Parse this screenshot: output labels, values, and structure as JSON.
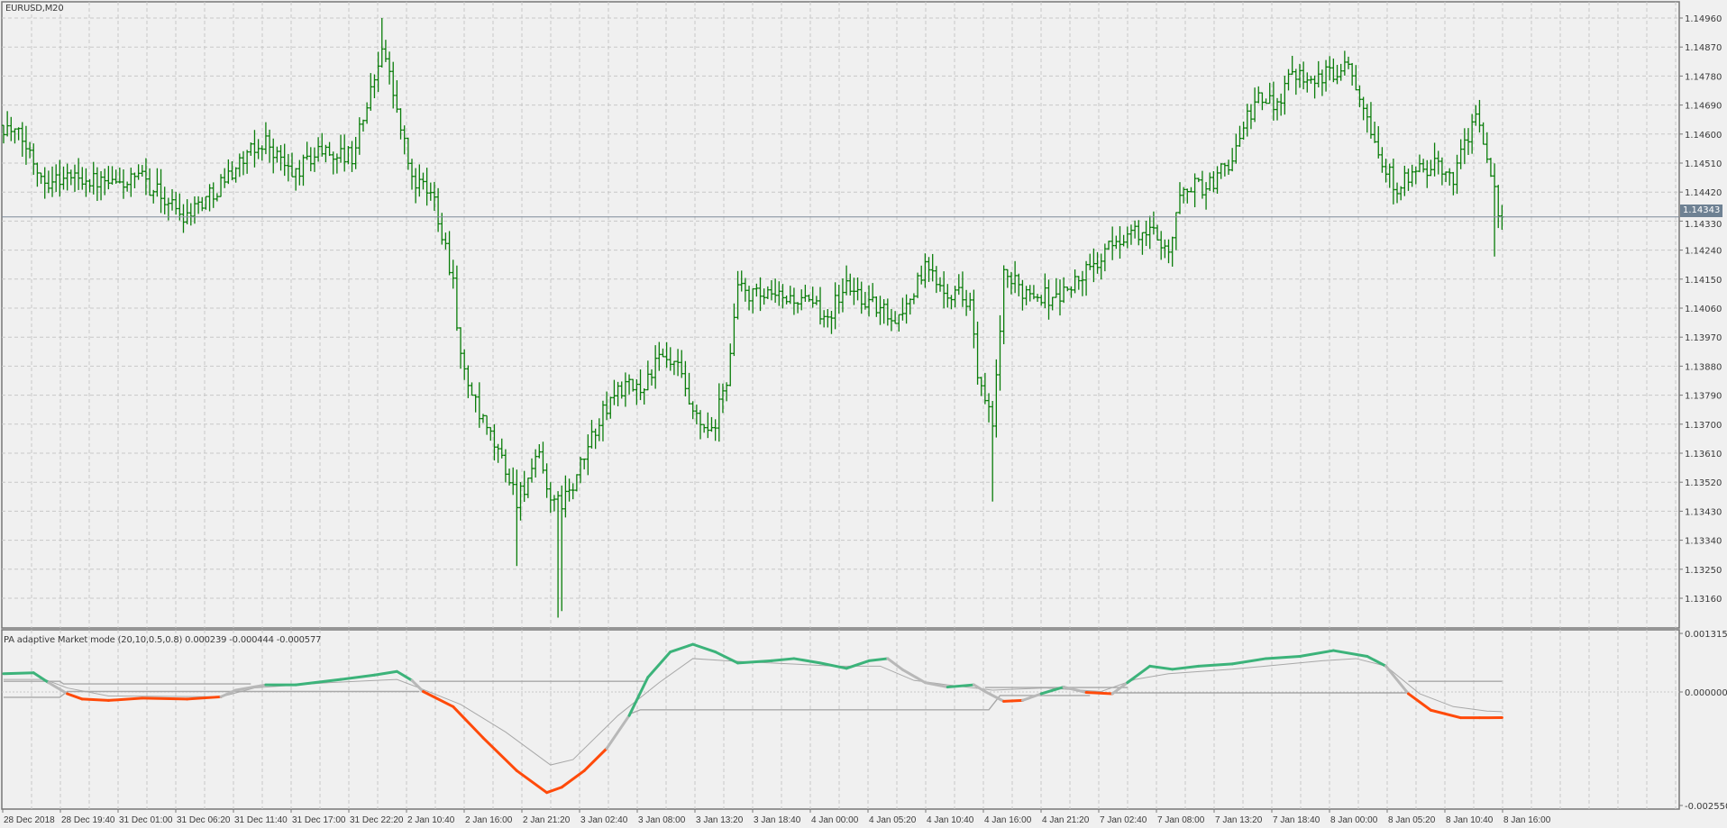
{
  "window": {
    "symbol_label": "EURUSD,M20"
  },
  "indicator": {
    "label": "PA adaptive Market mode (20,10,0.5,0.8) 0.000239 -0.000444 -0.000577",
    "scale_labels": [
      "0.001315",
      "0.000000",
      "-0.002550"
    ]
  },
  "colors": {
    "background": "#f0f0f0",
    "grid": "#c8c8c8",
    "border": "#777777",
    "bars": "#0a7d0a",
    "up": "#3cb37a",
    "down": "#ff4a0a",
    "neutral": "#b8b8b8",
    "signal": "#a8a8a8",
    "current_price_bg": "#6e8193"
  },
  "current_price": "1.14343",
  "chart_data": [
    {
      "type": "ohlc-bar",
      "title": "EURUSD,M20",
      "ylim": [
        1.131,
        1.15
      ],
      "y_ticks": [
        "1.14960",
        "1.14870",
        "1.14780",
        "1.14690",
        "1.14600",
        "1.14510",
        "1.14420",
        "1.14330",
        "1.14240",
        "1.14150",
        "1.14060",
        "1.13970",
        "1.13880",
        "1.13790",
        "1.13700",
        "1.13610",
        "1.13520",
        "1.13430",
        "1.13340",
        "1.13250",
        "1.13160"
      ],
      "x_ticks": [
        "28 Dec 2018",
        "28 Dec 19:40",
        "31 Dec 01:00",
        "31 Dec 06:20",
        "31 Dec 11:40",
        "31 Dec 17:00",
        "31 Dec 22:20",
        "2 Jan 10:40",
        "2 Jan 16:00",
        "2 Jan 21:20",
        "3 Jan 02:40",
        "3 Jan 08:00",
        "3 Jan 13:20",
        "3 Jan 18:40",
        "4 Jan 00:00",
        "4 Jan 05:20",
        "4 Jan 10:40",
        "4 Jan 16:00",
        "4 Jan 21:20",
        "7 Jan 02:40",
        "7 Jan 08:00",
        "7 Jan 13:20",
        "7 Jan 18:40",
        "8 Jan 00:00",
        "8 Jan 05:20",
        "8 Jan 10:40",
        "8 Jan 16:00"
      ],
      "grid": true,
      "close_path": [
        [
          0,
          1.14627
        ],
        [
          5,
          1.1458
        ],
        [
          11,
          1.1446
        ],
        [
          20,
          1.1447
        ],
        [
          28,
          1.1444
        ],
        [
          37,
          1.1446
        ],
        [
          48,
          1.1435
        ],
        [
          55,
          1.1441
        ],
        [
          62,
          1.145
        ],
        [
          70,
          1.1458
        ],
        [
          77,
          1.1447
        ],
        [
          84,
          1.1455
        ],
        [
          93,
          1.1453
        ],
        [
          99,
          1.1477
        ],
        [
          101,
          1.1489
        ],
        [
          105,
          1.1467
        ],
        [
          109,
          1.1446
        ],
        [
          115,
          1.144
        ],
        [
          120,
          1.1415
        ],
        [
          122,
          1.139
        ],
        [
          127,
          1.1372
        ],
        [
          133,
          1.1359
        ],
        [
          137,
          1.1347
        ],
        [
          143,
          1.1359
        ],
        [
          147,
          1.1344
        ],
        [
          152,
          1.135
        ],
        [
          158,
          1.1369
        ],
        [
          164,
          1.1381
        ],
        [
          170,
          1.1381
        ],
        [
          175,
          1.139
        ],
        [
          180,
          1.1387
        ],
        [
          184,
          1.1372
        ],
        [
          189,
          1.1366
        ],
        [
          193,
          1.1384
        ],
        [
          196,
          1.1412
        ],
        [
          202,
          1.1409
        ],
        [
          211,
          1.1409
        ],
        [
          220,
          1.1404
        ],
        [
          225,
          1.1413
        ],
        [
          233,
          1.1406
        ],
        [
          239,
          1.1403
        ],
        [
          246,
          1.1418
        ],
        [
          252,
          1.1412
        ],
        [
          258,
          1.1409
        ],
        [
          260,
          1.1384
        ],
        [
          264,
          1.1369
        ],
        [
          267,
          1.1415
        ],
        [
          272,
          1.1412
        ],
        [
          281,
          1.1409
        ],
        [
          290,
          1.1418
        ],
        [
          299,
          1.1429
        ],
        [
          308,
          1.1429
        ],
        [
          311,
          1.1424
        ],
        [
          315,
          1.1444
        ],
        [
          322,
          1.1444
        ],
        [
          328,
          1.1453
        ],
        [
          334,
          1.147
        ],
        [
          340,
          1.147
        ],
        [
          344,
          1.148
        ],
        [
          352,
          1.1477
        ],
        [
          359,
          1.1483
        ],
        [
          364,
          1.1467
        ],
        [
          368,
          1.145
        ],
        [
          372,
          1.1444
        ],
        [
          381,
          1.145
        ],
        [
          387,
          1.1447
        ],
        [
          393,
          1.1467
        ],
        [
          397,
          1.1444
        ],
        [
          400,
          1.14343
        ]
      ],
      "extremes": [
        [
          101,
          "high",
          1.1496
        ],
        [
          137,
          "low",
          1.1326
        ],
        [
          148,
          "low",
          1.131
        ],
        [
          149,
          "low",
          1.1312
        ],
        [
          264,
          "low",
          1.1346
        ],
        [
          359,
          "high",
          1.1484
        ],
        [
          393,
          "high",
          1.1469
        ],
        [
          398,
          "low",
          1.1422
        ]
      ]
    },
    {
      "type": "line",
      "title": "PA adaptive Market mode (20,10,0.5,0.8)",
      "ylim": [
        -0.00255,
        0.001315
      ],
      "main": [
        [
          0,
          0.00041,
          "up"
        ],
        [
          8,
          0.00043,
          "up"
        ],
        [
          12,
          0.00021,
          "neutral"
        ],
        [
          17,
          -4e-05,
          "down"
        ],
        [
          21,
          -0.00016,
          "down"
        ],
        [
          28,
          -0.00019,
          "down"
        ],
        [
          37,
          -0.00014,
          "down"
        ],
        [
          49,
          -0.00016,
          "down"
        ],
        [
          58,
          -0.00011,
          "neutral"
        ],
        [
          62,
          4e-05,
          "neutral"
        ],
        [
          70,
          0.00016,
          "up"
        ],
        [
          78,
          0.00016,
          "up"
        ],
        [
          90,
          0.00028,
          "up"
        ],
        [
          99,
          0.00038,
          "up"
        ],
        [
          105,
          0.00046,
          "up"
        ],
        [
          109,
          0.00026,
          "neutral"
        ],
        [
          112,
          1e-05,
          "down"
        ],
        [
          120,
          -0.00033,
          "down"
        ],
        [
          128,
          -0.00103,
          "down"
        ],
        [
          137,
          -0.00177,
          "down"
        ],
        [
          145,
          -0.00226,
          "down"
        ],
        [
          149,
          -0.00214,
          "down"
        ],
        [
          155,
          -0.00177,
          "down"
        ],
        [
          161,
          -0.00127,
          "neutral"
        ],
        [
          167,
          -0.00053,
          "up"
        ],
        [
          172,
          0.00033,
          "up"
        ],
        [
          178,
          0.0009,
          "up"
        ],
        [
          184,
          0.00107,
          "up"
        ],
        [
          190,
          0.0009,
          "up"
        ],
        [
          196,
          0.00065,
          "up"
        ],
        [
          205,
          0.0007,
          "up"
        ],
        [
          211,
          0.00075,
          "up"
        ],
        [
          218,
          0.00065,
          "up"
        ],
        [
          225,
          0.00053,
          "up"
        ],
        [
          231,
          0.0007,
          "up"
        ],
        [
          236,
          0.00075,
          "neutral"
        ],
        [
          240,
          0.0005,
          "neutral"
        ],
        [
          246,
          0.00021,
          "neutral"
        ],
        [
          252,
          0.00011,
          "up"
        ],
        [
          259,
          0.00016,
          "neutral"
        ],
        [
          262,
          1e-05,
          "neutral"
        ],
        [
          267,
          -0.00021,
          "down"
        ],
        [
          272,
          -0.00019,
          "neutral"
        ],
        [
          277,
          -4e-05,
          "up"
        ],
        [
          283,
          0.00011,
          "neutral"
        ],
        [
          289,
          -1e-05,
          "down"
        ],
        [
          296,
          -4e-05,
          "neutral"
        ],
        [
          300,
          0.00021,
          "up"
        ],
        [
          306,
          0.00058,
          "up"
        ],
        [
          312,
          0.00051,
          "up"
        ],
        [
          319,
          0.00058,
          "up"
        ],
        [
          328,
          0.00063,
          "up"
        ],
        [
          337,
          0.00075,
          "up"
        ],
        [
          346,
          0.0008,
          "up"
        ],
        [
          355,
          0.00093,
          "up"
        ],
        [
          364,
          0.0008,
          "up"
        ],
        [
          369,
          0.00058,
          "neutral"
        ],
        [
          375,
          -4e-05,
          "down"
        ],
        [
          381,
          -0.00041,
          "down"
        ],
        [
          389,
          -0.00058,
          "down"
        ],
        [
          394,
          -0.00058,
          "down"
        ],
        [
          400,
          -0.000577,
          "down"
        ]
      ],
      "signal": [
        [
          0,
          0.00028
        ],
        [
          11,
          0.00028
        ],
        [
          17,
          9e-05
        ],
        [
          28,
          -9e-05
        ],
        [
          58,
          -0.00011
        ],
        [
          67,
          9e-05
        ],
        [
          75,
          0.00014
        ],
        [
          87,
          0.00021
        ],
        [
          105,
          0.00028
        ],
        [
          111,
          9e-05
        ],
        [
          122,
          -0.00028
        ],
        [
          134,
          -0.0009
        ],
        [
          146,
          -0.00164
        ],
        [
          152,
          -0.00152
        ],
        [
          164,
          -0.00053
        ],
        [
          175,
          0.00021
        ],
        [
          184,
          0.00075
        ],
        [
          193,
          0.0007
        ],
        [
          205,
          0.00065
        ],
        [
          222,
          0.00058
        ],
        [
          234,
          0.00058
        ],
        [
          243,
          0.00026
        ],
        [
          252,
          0.00016
        ],
        [
          264,
          4e-05
        ],
        [
          278,
          9e-05
        ],
        [
          293,
          1e-05
        ],
        [
          302,
          0.00028
        ],
        [
          311,
          0.00041
        ],
        [
          328,
          0.00051
        ],
        [
          352,
          0.0007
        ],
        [
          361,
          0.00075
        ],
        [
          369,
          0.00058
        ],
        [
          378,
          -4e-05
        ],
        [
          387,
          -0.00033
        ],
        [
          396,
          -0.00043
        ],
        [
          400,
          -0.000444
        ]
      ],
      "levels": [
        [
          [
            0,
            0.00024
          ],
          [
            15,
            0.00024
          ],
          [
            16,
            0.00018
          ],
          [
            66,
            0.00018
          ]
        ],
        [
          [
            0,
            -0.00012
          ],
          [
            15,
            -0.00012
          ],
          [
            17,
            1e-05
          ],
          [
            111,
            1e-05
          ]
        ],
        [
          [
            111,
            0.00024
          ],
          [
            171,
            0.00024
          ]
        ],
        [
          [
            167,
            -0.0005
          ],
          [
            170,
            -0.0004
          ],
          [
            263,
            -0.0004
          ],
          [
            266,
            -8e-05
          ],
          [
            290,
            -8e-05
          ]
        ],
        [
          [
            262,
            0.0001
          ],
          [
            300,
            0.0001
          ]
        ],
        [
          [
            296,
            -2e-05
          ],
          [
            375,
            -2e-05
          ]
        ],
        [
          [
            375,
            0.000239
          ],
          [
            400,
            0.000239
          ]
        ]
      ]
    }
  ]
}
